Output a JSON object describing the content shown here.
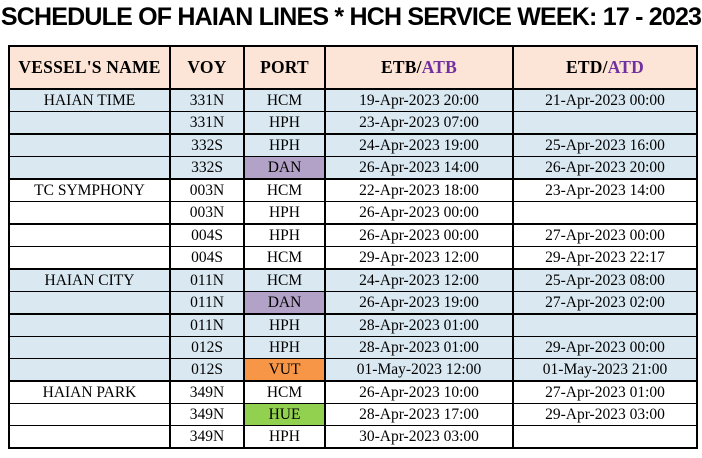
{
  "title": "SCHEDULE OF HAIAN LINES * HCH SERVICE WEEK: 17 - 2023",
  "colors": {
    "header_bg": "#FCE4D6",
    "row_alt_bg": "#D9E8F1",
    "actual_accent": "#7030A0",
    "port_dan": "#B3A2C7",
    "port_vut": "#F79646",
    "port_hue": "#92D050",
    "border": "#000000"
  },
  "table": {
    "headers": {
      "vessel": "VESSEL'S NAME",
      "voy": "VOY",
      "port": "PORT",
      "etb_estimated": "ETB/",
      "etb_actual": "ATB",
      "etd_estimated": "ETD/",
      "etd_actual": "ATD"
    },
    "rows": [
      {
        "vessel": "HAIAN TIME",
        "voy": "331N",
        "port": "HCM",
        "etb": "19-Apr-2023 20:00",
        "etd": "21-Apr-2023 00:00",
        "shaded": true,
        "port_color": "",
        "group_end": false
      },
      {
        "vessel": "",
        "voy": "331N",
        "port": "HPH",
        "etb": "23-Apr-2023 07:00",
        "etd": "",
        "shaded": true,
        "port_color": "",
        "group_end": true
      },
      {
        "vessel": "",
        "voy": "332S",
        "port": "HPH",
        "etb": "24-Apr-2023 19:00",
        "etd": "25-Apr-2023 16:00",
        "shaded": true,
        "port_color": "",
        "group_end": false
      },
      {
        "vessel": "",
        "voy": "332S",
        "port": "DAN",
        "etb": "26-Apr-2023 14:00",
        "etd": "26-Apr-2023 20:00",
        "shaded": true,
        "port_color": "dan",
        "group_end": true
      },
      {
        "vessel": "TC SYMPHONY",
        "voy": "003N",
        "port": "HCM",
        "etb": "22-Apr-2023 18:00",
        "etd": "23-Apr-2023 14:00",
        "shaded": false,
        "port_color": "",
        "group_end": false
      },
      {
        "vessel": "",
        "voy": "003N",
        "port": "HPH",
        "etb": "26-Apr-2023 00:00",
        "etd": "",
        "shaded": false,
        "port_color": "",
        "group_end": true
      },
      {
        "vessel": "",
        "voy": "004S",
        "port": "HPH",
        "etb": "26-Apr-2023 00:00",
        "etd": "27-Apr-2023 00:00",
        "shaded": false,
        "port_color": "",
        "group_end": false
      },
      {
        "vessel": "",
        "voy": "004S",
        "port": "HCM",
        "etb": "29-Apr-2023 12:00",
        "etd": "29-Apr-2023 22:17",
        "shaded": false,
        "port_color": "",
        "group_end": true
      },
      {
        "vessel": "HAIAN CITY",
        "voy": "011N",
        "port": "HCM",
        "etb": "24-Apr-2023 12:00",
        "etd": "25-Apr-2023 08:00",
        "shaded": true,
        "port_color": "",
        "group_end": false
      },
      {
        "vessel": "",
        "voy": "011N",
        "port": "DAN",
        "etb": "26-Apr-2023 19:00",
        "etd": "27-Apr-2023 02:00",
        "shaded": true,
        "port_color": "dan",
        "group_end": true
      },
      {
        "vessel": "",
        "voy": "011N",
        "port": "HPH",
        "etb": "28-Apr-2023 01:00",
        "etd": "",
        "shaded": true,
        "port_color": "",
        "group_end": false
      },
      {
        "vessel": "",
        "voy": "012S",
        "port": "HPH",
        "etb": "28-Apr-2023 01:00",
        "etd": "29-Apr-2023 00:00",
        "shaded": true,
        "port_color": "",
        "group_end": false
      },
      {
        "vessel": "",
        "voy": "012S",
        "port": "VUT",
        "etb": "01-May-2023 12:00",
        "etd": "01-May-2023 21:00",
        "shaded": true,
        "port_color": "vut",
        "group_end": true
      },
      {
        "vessel": "HAIAN PARK",
        "voy": "349N",
        "port": "HCM",
        "etb": "26-Apr-2023 10:00",
        "etd": "27-Apr-2023 01:00",
        "shaded": false,
        "port_color": "",
        "group_end": false
      },
      {
        "vessel": "",
        "voy": "349N",
        "port": "HUE",
        "etb": "28-Apr-2023 17:00",
        "etd": "29-Apr-2023 03:00",
        "shaded": false,
        "port_color": "hue",
        "group_end": false
      },
      {
        "vessel": "",
        "voy": "349N",
        "port": "HPH",
        "etb": "30-Apr-2023 03:00",
        "etd": "",
        "shaded": false,
        "port_color": "",
        "group_end": false
      }
    ]
  }
}
